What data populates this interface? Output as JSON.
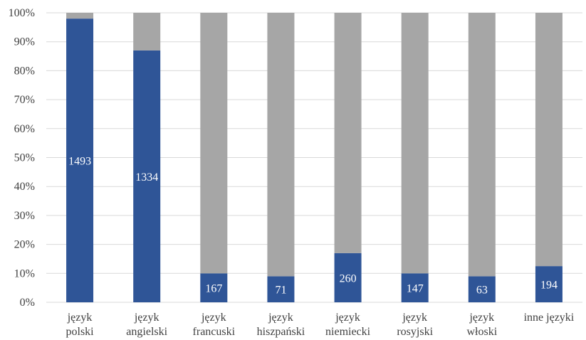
{
  "chart_data": {
    "type": "bar",
    "stacked": true,
    "percent_stacked": true,
    "categories": [
      [
        "język",
        "polski"
      ],
      [
        "język",
        "angielski"
      ],
      [
        "język",
        "francuski"
      ],
      [
        "język",
        "hiszpański"
      ],
      [
        "język",
        "niemiecki"
      ],
      [
        "język",
        "rosyjski"
      ],
      [
        "język",
        "włoski"
      ],
      [
        "inne języki"
      ]
    ],
    "series": [
      {
        "color": "#2f5597",
        "values_percent": [
          98,
          87,
          10,
          9,
          17,
          10,
          9,
          12.5
        ],
        "data_labels": [
          "1493",
          "1334",
          "167",
          "71",
          "260",
          "147",
          "63",
          "194"
        ]
      },
      {
        "color": "#a6a6a6",
        "values_percent": [
          2,
          13,
          90,
          91,
          83,
          90,
          91,
          87.5
        ]
      }
    ],
    "yticks": [
      "0%",
      "10%",
      "20%",
      "30%",
      "40%",
      "50%",
      "60%",
      "70%",
      "80%",
      "90%",
      "100%"
    ],
    "ylim": [
      0,
      100
    ],
    "grid": true,
    "legend": "none"
  }
}
